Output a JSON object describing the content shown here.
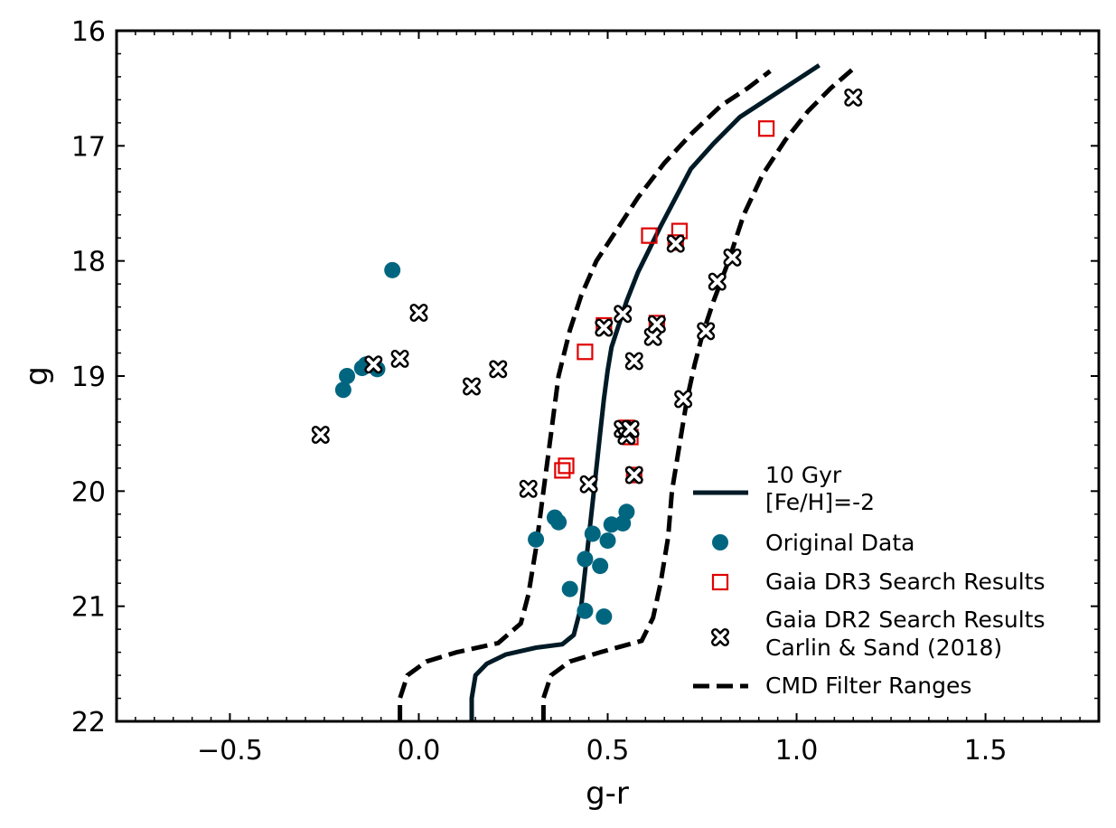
{
  "chart_data": {
    "type": "scatter",
    "title": "",
    "xlabel": "g-r",
    "ylabel": "g",
    "xlim": [
      -0.8,
      1.8
    ],
    "ylim": [
      22,
      16
    ],
    "y_inverted": true,
    "x_ticks": [
      -0.5,
      0.0,
      0.5,
      1.0,
      1.5
    ],
    "x_tick_labels": [
      "−0.5",
      "0.0",
      "0.5",
      "1.0",
      "1.5"
    ],
    "y_ticks": [
      16,
      17,
      18,
      19,
      20,
      21,
      22
    ],
    "y_tick_labels": [
      "16",
      "17",
      "18",
      "19",
      "20",
      "21",
      "22"
    ],
    "grid": false,
    "legend_position": "lower-right",
    "colors": {
      "isochrone": "#001a26",
      "original": "#006680",
      "dr3": "#e00000",
      "dr2": "#000000",
      "filter": "#000000"
    },
    "series": [
      {
        "name": "10 Gyr\n[Fe/H]=-2",
        "legend_lines": [
          "10 Gyr",
          "[Fe/H]=-2"
        ],
        "kind": "line",
        "x": [
          0.14,
          0.14,
          0.15,
          0.18,
          0.23,
          0.31,
          0.38,
          0.41,
          0.43,
          0.44,
          0.45,
          0.46,
          0.47,
          0.48,
          0.49,
          0.5,
          0.51,
          0.53,
          0.55,
          0.58,
          0.61,
          0.64,
          0.68,
          0.72,
          0.78,
          0.85,
          0.92,
          0.99,
          1.06
        ],
        "y": [
          22.0,
          21.8,
          21.6,
          21.5,
          21.42,
          21.36,
          21.33,
          21.25,
          21.0,
          20.7,
          20.4,
          20.1,
          19.8,
          19.5,
          19.2,
          18.95,
          18.75,
          18.55,
          18.35,
          18.1,
          17.9,
          17.7,
          17.45,
          17.2,
          16.98,
          16.75,
          16.6,
          16.45,
          16.3
        ]
      },
      {
        "name": "Original Data",
        "kind": "points",
        "marker": "circle",
        "points": [
          [
            -0.07,
            18.08
          ],
          [
            -0.19,
            19.0
          ],
          [
            -0.2,
            19.12
          ],
          [
            -0.15,
            18.93
          ],
          [
            -0.14,
            18.9
          ],
          [
            -0.11,
            18.94
          ],
          [
            0.31,
            20.42
          ],
          [
            0.36,
            20.23
          ],
          [
            0.37,
            20.27
          ],
          [
            0.4,
            20.85
          ],
          [
            0.44,
            20.59
          ],
          [
            0.44,
            21.04
          ],
          [
            0.46,
            20.37
          ],
          [
            0.48,
            20.65
          ],
          [
            0.49,
            21.09
          ],
          [
            0.5,
            20.43
          ],
          [
            0.51,
            20.29
          ],
          [
            0.54,
            20.28
          ],
          [
            0.55,
            20.18
          ]
        ]
      },
      {
        "name": "Gaia DR3 Search Results",
        "kind": "points",
        "marker": "open-square",
        "points": [
          [
            0.38,
            19.82
          ],
          [
            0.39,
            19.78
          ],
          [
            0.44,
            18.79
          ],
          [
            0.49,
            18.56
          ],
          [
            0.55,
            19.45
          ],
          [
            0.56,
            19.53
          ],
          [
            0.57,
            19.86
          ],
          [
            0.61,
            17.78
          ],
          [
            0.63,
            18.54
          ],
          [
            0.68,
            17.84
          ],
          [
            0.69,
            17.74
          ],
          [
            0.92,
            16.85
          ]
        ]
      },
      {
        "name": "Gaia DR2 Search Results\nCarlin & Sand (2018)",
        "legend_lines": [
          "Gaia DR2 Search Results",
          "Carlin & Sand (2018)"
        ],
        "kind": "points",
        "marker": "x-filled",
        "points": [
          [
            -0.26,
            19.51
          ],
          [
            -0.12,
            18.9
          ],
          [
            -0.05,
            18.85
          ],
          [
            0.0,
            18.45
          ],
          [
            0.14,
            19.09
          ],
          [
            0.21,
            18.94
          ],
          [
            0.29,
            19.98
          ],
          [
            0.45,
            19.94
          ],
          [
            0.49,
            18.58
          ],
          [
            0.54,
            18.46
          ],
          [
            0.54,
            19.46
          ],
          [
            0.55,
            19.52
          ],
          [
            0.56,
            19.46
          ],
          [
            0.57,
            18.87
          ],
          [
            0.57,
            19.86
          ],
          [
            0.62,
            18.66
          ],
          [
            0.63,
            18.55
          ],
          [
            0.68,
            17.85
          ],
          [
            0.7,
            19.2
          ],
          [
            0.76,
            18.61
          ],
          [
            0.79,
            18.18
          ],
          [
            0.83,
            17.97
          ],
          [
            1.15,
            16.58
          ]
        ]
      },
      {
        "name": "CMD Filter Ranges",
        "kind": "dashed-lines",
        "lines": [
          {
            "x": [
              -0.05,
              -0.05,
              -0.03,
              0.02,
              0.1,
              0.21,
              0.27,
              0.29,
              0.31,
              0.33,
              0.35,
              0.37,
              0.4,
              0.43,
              0.47,
              0.52,
              0.58,
              0.65,
              0.72,
              0.8,
              0.87,
              0.93
            ],
            "y": [
              22.0,
              21.8,
              21.6,
              21.48,
              21.4,
              21.32,
              21.15,
              20.9,
              20.5,
              20.0,
              19.5,
              19.0,
              18.6,
              18.3,
              18.0,
              17.75,
              17.45,
              17.15,
              16.9,
              16.65,
              16.5,
              16.35
            ]
          },
          {
            "x": [
              0.33,
              0.33,
              0.35,
              0.4,
              0.48,
              0.59,
              0.62,
              0.64,
              0.66,
              0.67,
              0.69,
              0.71,
              0.73,
              0.75,
              0.78,
              0.82,
              0.86,
              0.91,
              0.97,
              1.03,
              1.09,
              1.15
            ],
            "y": [
              22.0,
              21.8,
              21.6,
              21.48,
              21.4,
              21.3,
              21.1,
              20.8,
              20.4,
              20.0,
              19.6,
              19.2,
              18.9,
              18.65,
              18.35,
              18.0,
              17.6,
              17.25,
              16.95,
              16.7,
              16.5,
              16.33
            ]
          }
        ]
      }
    ]
  }
}
